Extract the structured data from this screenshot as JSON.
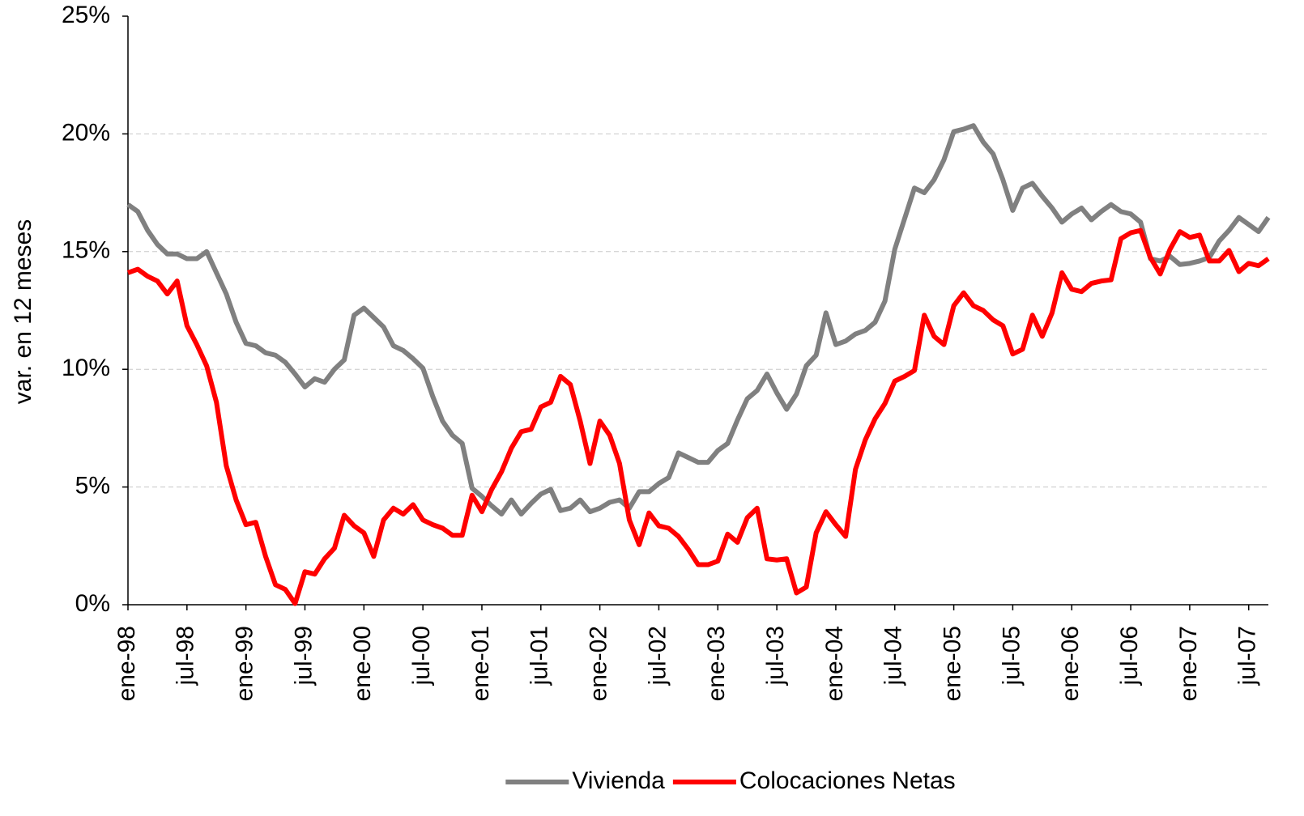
{
  "chart_data": {
    "type": "line",
    "y_label": "var. en 12 meses",
    "categories": [
      "ene-98",
      null,
      null,
      null,
      null,
      null,
      "jul-98",
      null,
      null,
      null,
      null,
      null,
      "ene-99",
      null,
      null,
      null,
      null,
      null,
      "jul-99",
      null,
      null,
      null,
      null,
      null,
      "ene-00",
      null,
      null,
      null,
      null,
      null,
      "jul-00",
      null,
      null,
      null,
      null,
      null,
      "ene-01",
      null,
      null,
      null,
      null,
      null,
      "jul-01",
      null,
      null,
      null,
      null,
      null,
      "ene-02",
      null,
      null,
      null,
      null,
      null,
      "jul-02",
      null,
      null,
      null,
      null,
      null,
      "ene-03",
      null,
      null,
      null,
      null,
      null,
      "jul-03",
      null,
      null,
      null,
      null,
      null,
      "ene-04",
      null,
      null,
      null,
      null,
      null,
      "jul-04",
      null,
      null,
      null,
      null,
      null,
      "ene-05",
      null,
      null,
      null,
      null,
      null,
      "jul-05",
      null,
      null,
      null,
      null,
      null,
      "ene-06",
      null,
      null,
      null,
      null,
      null,
      "jul-06",
      null,
      null,
      null,
      null,
      null,
      "ene-07",
      null,
      null,
      null,
      null,
      null,
      "jul-07",
      null,
      null
    ],
    "series": [
      {
        "name": "Vivienda",
        "color": "#808080",
        "values": [
          17.0,
          16.7,
          15.9,
          15.3,
          14.9,
          14.9,
          14.7,
          14.7,
          15.0,
          14.1,
          13.2,
          12.0,
          11.1,
          11.0,
          10.7,
          10.6,
          10.3,
          9.8,
          9.25,
          9.6,
          9.45,
          10.0,
          10.4,
          12.3,
          12.6,
          12.2,
          11.8,
          11.0,
          10.8,
          10.45,
          10.05,
          8.85,
          7.8,
          7.2,
          6.85,
          4.95,
          4.6,
          4.2,
          3.85,
          4.45,
          3.85,
          4.3,
          4.7,
          4.9,
          4.0,
          4.1,
          4.45,
          3.95,
          4.1,
          4.35,
          4.45,
          4.1,
          4.8,
          4.8,
          5.15,
          5.4,
          6.45,
          6.25,
          6.05,
          6.05,
          6.55,
          6.85,
          7.85,
          8.75,
          9.1,
          9.8,
          9.0,
          8.3,
          8.95,
          10.15,
          10.6,
          12.4,
          11.05,
          11.2,
          11.5,
          11.65,
          12.0,
          12.9,
          15.1,
          16.4,
          17.7,
          17.5,
          18.05,
          18.9,
          20.1,
          20.2,
          20.35,
          19.65,
          19.15,
          18.05,
          16.75,
          17.7,
          17.9,
          17.35,
          16.85,
          16.25,
          16.6,
          16.85,
          16.35,
          16.7,
          17.0,
          16.7,
          16.6,
          16.25,
          14.7,
          14.6,
          14.8,
          14.45,
          14.5,
          14.6,
          14.75,
          15.45,
          15.9,
          16.45,
          16.15,
          15.85,
          16.45
        ]
      },
      {
        "name": "Colocaciones Netas",
        "color": "#ff0000",
        "values": [
          14.1,
          14.25,
          13.95,
          13.75,
          13.2,
          13.75,
          11.85,
          11.05,
          10.15,
          8.6,
          5.9,
          4.45,
          3.4,
          3.5,
          2.05,
          0.85,
          0.65,
          0.05,
          1.4,
          1.3,
          1.95,
          2.4,
          3.8,
          3.35,
          3.05,
          2.05,
          3.6,
          4.1,
          3.85,
          4.25,
          3.6,
          3.4,
          3.25,
          2.95,
          2.95,
          4.65,
          3.95,
          4.9,
          5.65,
          6.65,
          7.35,
          7.45,
          8.4,
          8.6,
          9.7,
          9.35,
          7.8,
          6.0,
          7.8,
          7.2,
          6.0,
          3.6,
          2.55,
          3.9,
          3.35,
          3.25,
          2.9,
          2.35,
          1.7,
          1.7,
          1.85,
          3.0,
          2.65,
          3.7,
          4.1,
          1.95,
          1.9,
          1.95,
          0.5,
          0.75,
          3.05,
          3.95,
          3.4,
          2.9,
          5.75,
          7.0,
          7.9,
          8.55,
          9.5,
          9.7,
          9.95,
          12.3,
          11.4,
          11.05,
          12.7,
          13.25,
          12.7,
          12.5,
          12.1,
          11.85,
          10.65,
          10.85,
          12.3,
          11.4,
          12.4,
          14.1,
          13.4,
          13.3,
          13.65,
          13.75,
          13.8,
          15.55,
          15.8,
          15.9,
          14.75,
          14.05,
          15.1,
          15.85,
          15.6,
          15.7,
          14.6,
          14.6,
          15.05,
          14.15,
          14.5,
          14.4,
          14.7
        ]
      }
    ],
    "ylim": [
      0,
      25
    ],
    "yticks": [
      {
        "value": 0,
        "label": "0%"
      },
      {
        "value": 5,
        "label": "5%"
      },
      {
        "value": 10,
        "label": "10%"
      },
      {
        "value": 15,
        "label": "15%"
      },
      {
        "value": 20,
        "label": "20%"
      },
      {
        "value": 25,
        "label": "25%"
      }
    ],
    "grid": true,
    "legend": "bottom"
  }
}
